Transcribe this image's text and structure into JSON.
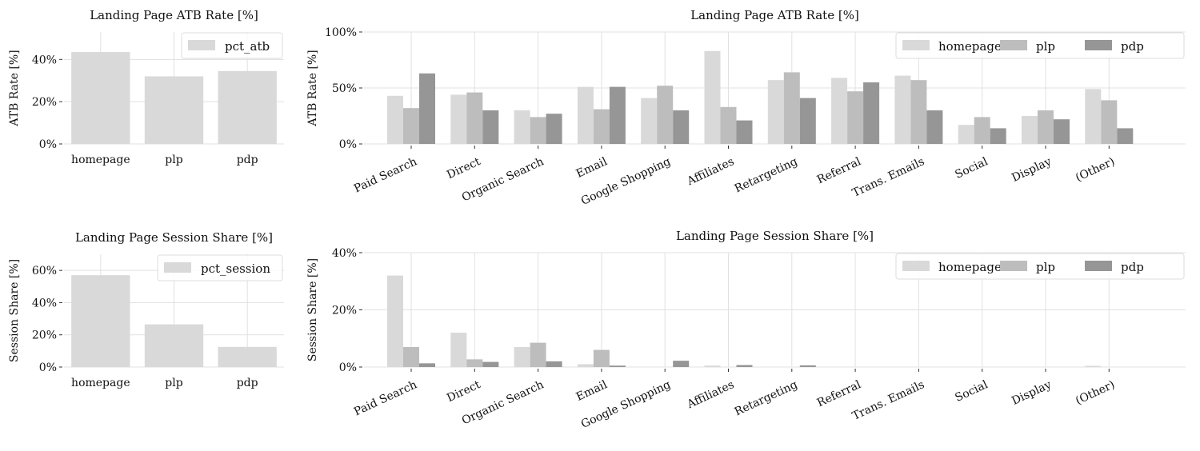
{
  "colors": {
    "homepage": "#d9d9d9",
    "plp": "#bdbdbd",
    "pdp": "#969696"
  },
  "chart_data": [
    {
      "id": "atb-overall",
      "type": "bar",
      "title": "Landing Page ATB Rate [%]",
      "ylabel": "ATB Rate [%]",
      "xlabel": "",
      "categories": [
        "homepage",
        "plp",
        "pdp"
      ],
      "series": [
        {
          "name": "pct_atb",
          "values": [
            43.5,
            32,
            34.5
          ]
        }
      ],
      "ylim": [
        0,
        53
      ],
      "yticks": [
        0,
        20,
        40
      ],
      "yticklabels": [
        "0%",
        "20%",
        "40%"
      ],
      "grid": true,
      "legend": "top-right"
    },
    {
      "id": "atb-by-channel",
      "type": "bar",
      "title": "Landing Page ATB Rate [%]",
      "ylabel": "ATB Rate [%]",
      "xlabel": "",
      "categories": [
        "Paid Search",
        "Direct",
        "Organic Search",
        "Email",
        "Google Shopping",
        "Affiliates",
        "Retargeting",
        "Referral",
        "Trans. Emails",
        "Social",
        "Display",
        "(Other)"
      ],
      "series": [
        {
          "name": "homepage",
          "values": [
            43,
            44,
            30,
            51,
            41,
            83,
            57,
            59,
            61,
            17,
            25,
            49
          ]
        },
        {
          "name": "plp",
          "values": [
            32,
            46,
            24,
            31,
            52,
            33,
            64,
            47,
            57,
            24,
            30,
            39
          ]
        },
        {
          "name": "pdp",
          "values": [
            63,
            30,
            27,
            51,
            30,
            21,
            41,
            55,
            30,
            14,
            22,
            14
          ]
        }
      ],
      "ylim": [
        0,
        100
      ],
      "yticks": [
        0,
        50,
        100
      ],
      "yticklabels": [
        "0%",
        "50%",
        "100%"
      ],
      "grid": true,
      "legend": "top-right"
    },
    {
      "id": "session-overall",
      "type": "bar",
      "title": "Landing Page Session Share [%]",
      "ylabel": "Session Share [%]",
      "xlabel": "",
      "categories": [
        "homepage",
        "plp",
        "pdp"
      ],
      "series": [
        {
          "name": "pct_session",
          "values": [
            57,
            26.5,
            12.5
          ]
        }
      ],
      "ylim": [
        0,
        70
      ],
      "yticks": [
        0,
        20,
        40,
        60
      ],
      "yticklabels": [
        "0%",
        "20%",
        "40%",
        "60%"
      ],
      "grid": true,
      "legend": "top-right"
    },
    {
      "id": "session-by-channel",
      "type": "bar",
      "title": "Landing Page Session Share [%]",
      "ylabel": "Session Share [%]",
      "xlabel": "",
      "categories": [
        "Paid Search",
        "Direct",
        "Organic Search",
        "Email",
        "Google Shopping",
        "Affiliates",
        "Retargeting",
        "Referral",
        "Trans. Emails",
        "Social",
        "Display",
        "(Other)"
      ],
      "series": [
        {
          "name": "homepage",
          "values": [
            32,
            12,
            7,
            1,
            0,
            0.5,
            0,
            0,
            0,
            0,
            0,
            0.4
          ]
        },
        {
          "name": "plp",
          "values": [
            7,
            2.7,
            8.5,
            6,
            0,
            0,
            0,
            0,
            0,
            0,
            0,
            0
          ]
        },
        {
          "name": "pdp",
          "values": [
            1.3,
            1.8,
            2,
            0.5,
            2.2,
            0.7,
            0.6,
            0,
            0,
            0,
            0,
            0
          ]
        }
      ],
      "ylim": [
        0,
        40
      ],
      "yticks": [
        0,
        20,
        40
      ],
      "yticklabels": [
        "0%",
        "20%",
        "40%"
      ],
      "grid": true,
      "legend": "top-right"
    }
  ]
}
